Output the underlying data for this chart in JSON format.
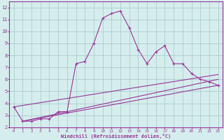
{
  "title": "",
  "xlabel": "Windchill (Refroidissement éolien,°C)",
  "ylabel": "",
  "bg_color": "#d5eeed",
  "grid_color": "#aacccc",
  "line_color": "#993399",
  "xlim": [
    -0.5,
    23.5
  ],
  "ylim": [
    2.0,
    12.5
  ],
  "xticks": [
    0,
    1,
    2,
    3,
    4,
    5,
    6,
    7,
    8,
    9,
    10,
    11,
    12,
    13,
    14,
    15,
    16,
    17,
    18,
    19,
    20,
    21,
    22,
    23
  ],
  "yticks": [
    2,
    3,
    4,
    5,
    6,
    7,
    8,
    9,
    10,
    11,
    12
  ],
  "line1_x": [
    0,
    1,
    2,
    3,
    4,
    5,
    6,
    7,
    8,
    9,
    10,
    11,
    12,
    13,
    14,
    15,
    16,
    17,
    18,
    19,
    20,
    21,
    22,
    23
  ],
  "line1_y": [
    3.7,
    2.5,
    2.5,
    2.7,
    2.7,
    3.3,
    3.3,
    7.3,
    7.5,
    9.0,
    11.1,
    11.5,
    11.7,
    10.3,
    8.5,
    7.3,
    8.3,
    8.8,
    7.3,
    7.3,
    6.5,
    6.0,
    5.8,
    5.5
  ],
  "line2_x": [
    1,
    23
  ],
  "line2_y": [
    2.5,
    5.5
  ],
  "line3_x": [
    1,
    23
  ],
  "line3_y": [
    2.5,
    6.0
  ],
  "line4_x": [
    0,
    23
  ],
  "line4_y": [
    3.7,
    6.4
  ],
  "marker": "+"
}
